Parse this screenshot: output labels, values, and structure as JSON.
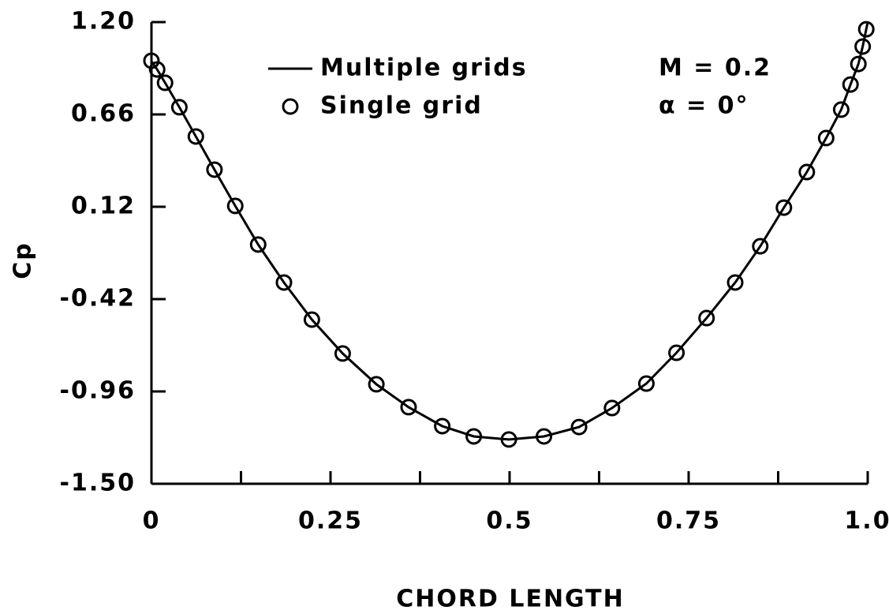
{
  "chart_data": {
    "type": "line",
    "xlabel": "CHORD LENGTH",
    "ylabel": "Cp",
    "annotations": [
      "M = 0.2",
      "α = 0°"
    ],
    "xlim": [
      0,
      1
    ],
    "ylim": [
      -1.5,
      1.2
    ],
    "xticks": [
      0,
      {
        "value": 0.125,
        "label": null
      },
      0.25,
      {
        "value": 0.375,
        "label": null
      },
      0.5,
      {
        "value": 0.625,
        "label": null
      },
      0.75,
      {
        "value": 0.875,
        "label": null
      },
      {
        "value": 1,
        "label": "1.0"
      }
    ],
    "yticks": [
      {
        "value": -1.5,
        "label": "-1.50"
      },
      -0.96,
      -0.42,
      0.12,
      0.66,
      {
        "value": 1.2,
        "label": "1.20"
      }
    ],
    "legend": "upper left",
    "series": [
      {
        "name": "Multiple grids",
        "type": "line",
        "color": "#000000",
        "x": [
          0,
          0.008,
          0.019,
          0.039,
          0.062,
          0.088,
          0.117,
          0.149,
          0.185,
          0.224,
          0.267,
          0.314,
          0.359,
          0.406,
          0.45,
          0.499,
          0.548,
          0.597,
          0.643,
          0.691,
          0.733,
          0.775,
          0.815,
          0.85,
          0.883,
          0.915,
          0.942,
          0.963,
          0.976,
          0.987,
          0.993,
          1
        ],
        "values": [
          0.97,
          0.923,
          0.845,
          0.702,
          0.531,
          0.337,
          0.125,
          -0.101,
          -0.323,
          -0.54,
          -0.738,
          -0.918,
          -1.052,
          -1.163,
          -1.223,
          -1.241,
          -1.223,
          -1.168,
          -1.057,
          -0.914,
          -0.734,
          -0.531,
          -0.323,
          -0.111,
          0.115,
          0.323,
          0.522,
          0.688,
          0.835,
          0.955,
          1.057,
          1.2
        ]
      },
      {
        "name": "Single grid",
        "type": "scatter",
        "color": "#000000",
        "x": [
          0,
          0.008,
          0.019,
          0.039,
          0.062,
          0.088,
          0.117,
          0.149,
          0.185,
          0.224,
          0.267,
          0.314,
          0.359,
          0.406,
          0.45,
          0.499,
          0.548,
          0.597,
          0.643,
          0.691,
          0.733,
          0.775,
          0.815,
          0.85,
          0.883,
          0.915,
          0.942,
          0.963,
          0.976,
          0.987,
          0.993,
          0.998
        ],
        "values": [
          0.974,
          0.923,
          0.845,
          0.702,
          0.531,
          0.337,
          0.125,
          -0.101,
          -0.323,
          -0.54,
          -0.738,
          -0.918,
          -1.052,
          -1.163,
          -1.223,
          -1.241,
          -1.223,
          -1.168,
          -1.057,
          -0.914,
          -0.734,
          -0.531,
          -0.323,
          -0.111,
          0.115,
          0.323,
          0.522,
          0.688,
          0.835,
          0.955,
          1.057,
          1.158
        ]
      }
    ]
  }
}
